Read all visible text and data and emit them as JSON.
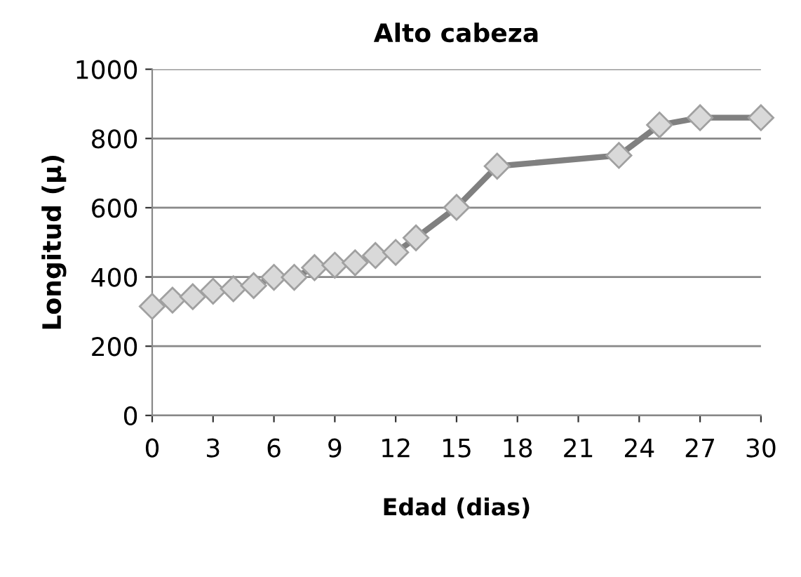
{
  "chart_data": {
    "type": "line",
    "title": "Alto cabeza",
    "xlabel": "Edad (dias)",
    "ylabel": "Longitud (µ)",
    "x": [
      0,
      1,
      2,
      3,
      4,
      5,
      6,
      7,
      8,
      9,
      10,
      11,
      12,
      13,
      15,
      17,
      23,
      25,
      27,
      30
    ],
    "series": [
      {
        "color": "#808080",
        "values": [
          315,
          333,
          343,
          359,
          366,
          375,
          399,
          399,
          427,
          434,
          441,
          462,
          471,
          513,
          601,
          720,
          751,
          839,
          860,
          860
        ]
      }
    ],
    "xlim": [
      0,
      30
    ],
    "xticks": [
      0,
      3,
      6,
      9,
      12,
      15,
      18,
      21,
      24,
      27,
      30
    ],
    "ylim": [
      0,
      1000
    ],
    "yticks": [
      0,
      200,
      400,
      600,
      800,
      1000
    ],
    "grid": "y",
    "marker": "diamond",
    "line_style": "solid",
    "legend": false
  }
}
